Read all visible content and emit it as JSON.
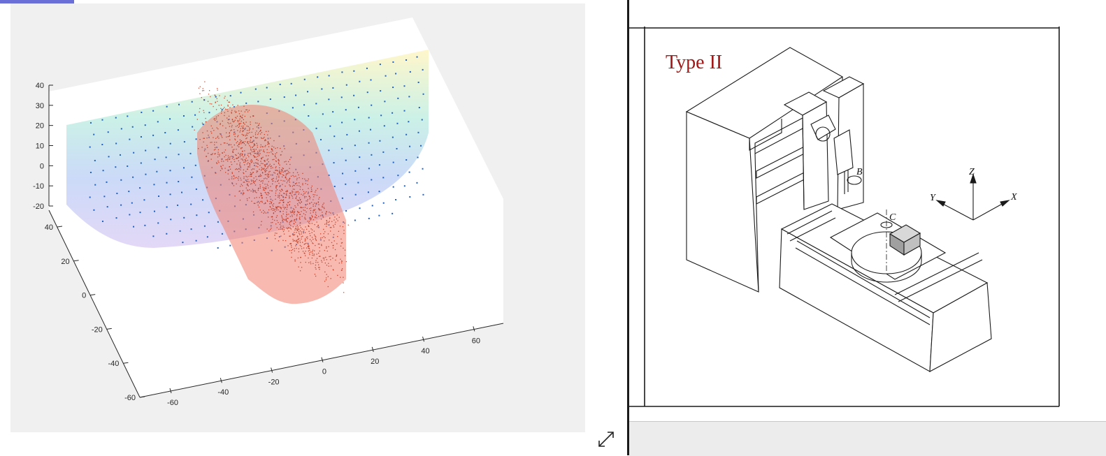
{
  "left_window": {
    "figure": {
      "background_color": "#f0f0f0",
      "axes_background": "#ffffff",
      "blue_point_color": "#1f5fc0",
      "red_point_color": "#b82a10",
      "red_surface_color": "#f08070"
    },
    "expand_icon": "diagonal-expand-arrows-icon"
  },
  "chart_data": {
    "type": "scatter",
    "title": "",
    "xlabel": "",
    "ylabel": "",
    "zlabel": "",
    "grid": false,
    "xlim": [
      -60,
      70
    ],
    "ylim": [
      -60,
      40
    ],
    "zlim": [
      -20,
      40
    ],
    "x_ticks": [
      "-60",
      "-40",
      "-20",
      "0",
      "20",
      "40",
      "60"
    ],
    "y_ticks": [
      "-60",
      "-40",
      "-20",
      "0",
      "20",
      "40"
    ],
    "z_ticks": [
      "-20",
      "-10",
      "0",
      "10",
      "20",
      "30",
      "40"
    ],
    "series": [
      {
        "marker_color": "#1f5fc0",
        "surface": "rainbow half-disc",
        "point_count_estimate": 300
      },
      {
        "marker_color": "#b82a10",
        "surface": "pink capsule",
        "point_count_estimate": 1500
      }
    ]
  },
  "right_window": {
    "title_label": "Type II",
    "title_color": "#a01818",
    "diagram": {
      "rotary_axis_labels": [
        "B",
        "C"
      ],
      "coordinate_axes": [
        "Y",
        "Z",
        "X"
      ]
    }
  }
}
